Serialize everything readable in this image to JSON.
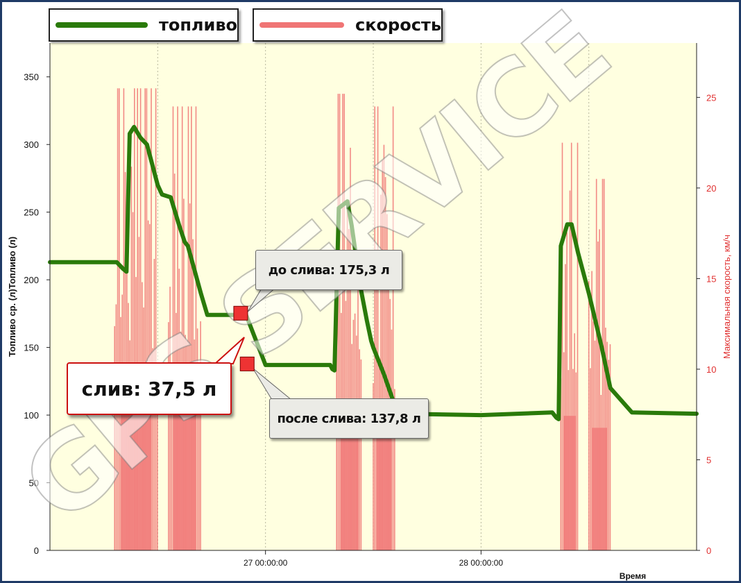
{
  "legend": [
    {
      "label": "топливо",
      "color": "#2a7a0a"
    },
    {
      "label": "скорость",
      "color": "#f07575"
    }
  ],
  "callouts": {
    "before": "до слива: 175,3 л",
    "after": "после слива: 137,8 л",
    "drain": "слив: 37,5 л"
  },
  "watermark": "GPS SERVICE",
  "colors": {
    "plot_bg": "#ffffe0",
    "fuel": "#2a7a0a",
    "speed": "#f07575",
    "marker": "#ee3333",
    "frame": "#1f3a66"
  },
  "chart_data": {
    "type": "line",
    "ylabel": "Топливо ср. (л)Топливо (л)",
    "y2label": "Максимальная скорость, км/ч",
    "xlabel": "Время",
    "xlim": [
      0,
      3
    ],
    "ylim": [
      0,
      375
    ],
    "y2lim": [
      0,
      28
    ],
    "yticks": [
      0,
      50,
      100,
      150,
      200,
      250,
      300,
      350
    ],
    "y2ticks": [
      0,
      5,
      10,
      15,
      20,
      25
    ],
    "xticks": [
      {
        "x": 1,
        "label": "27 00:00:00"
      },
      {
        "x": 2,
        "label": "28 00:00:00"
      }
    ],
    "grid": "vertical dotted",
    "series": [
      {
        "name": "топливо",
        "axis": "left",
        "x": [
          0,
          0.3,
          0.31,
          0.34,
          0.355,
          0.37,
          0.39,
          0.42,
          0.45,
          0.5,
          0.52,
          0.56,
          0.6,
          0.625,
          0.64,
          0.7,
          0.73,
          0.77,
          0.79,
          0.91,
          1.0,
          1.2,
          1.3,
          1.31,
          1.32,
          1.34,
          1.38,
          1.4,
          1.44,
          1.47,
          1.49,
          1.5,
          1.55,
          1.6,
          1.63,
          2.0,
          2.33,
          2.35,
          2.36,
          2.37,
          2.4,
          2.42,
          2.45,
          2.5,
          2.56,
          2.6,
          2.7,
          3.0
        ],
        "values": [
          213,
          213,
          213,
          208,
          206,
          308,
          313,
          305,
          300,
          270,
          263,
          261,
          240,
          228,
          225,
          190,
          174,
          174,
          174,
          174,
          137,
          137,
          137,
          134,
          133,
          253,
          258,
          240,
          195,
          170,
          155,
          150,
          130,
          107,
          101,
          100,
          102,
          98,
          97,
          225,
          241,
          241,
          220,
          190,
          150,
          120,
          102,
          101
        ]
      },
      {
        "name": "скорость",
        "axis": "right",
        "clusters": [
          {
            "from": 0.3,
            "to": 0.5,
            "peak": 25.5
          },
          {
            "from": 0.55,
            "to": 0.7,
            "peak": 24.5
          },
          {
            "from": 1.33,
            "to": 1.45,
            "peak": 25.2
          },
          {
            "from": 1.5,
            "to": 1.6,
            "peak": 24.5
          },
          {
            "from": 2.37,
            "to": 2.45,
            "peak": 22.5
          },
          {
            "from": 2.5,
            "to": 2.6,
            "peak": 20.5
          }
        ]
      }
    ],
    "markers": [
      {
        "x": 0.885,
        "value": 175.3,
        "label": "до слива: 175,3 л"
      },
      {
        "x": 0.915,
        "value": 137.8,
        "label": "после слива: 137,8 л"
      }
    ]
  }
}
